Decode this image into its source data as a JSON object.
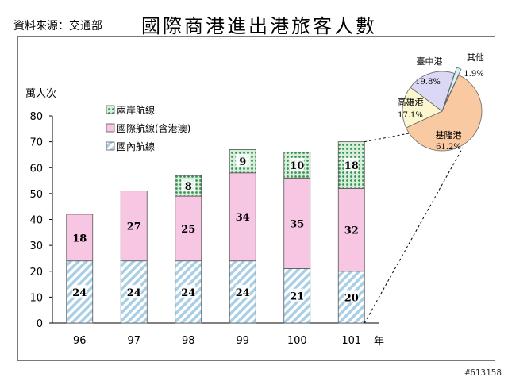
{
  "header": {
    "source": "資料來源：交通部",
    "title": "國際商港進出港旅客人數"
  },
  "watermark": "#613158",
  "chart_data": [
    {
      "type": "bar",
      "stacked": true,
      "ylabel": "萬人次",
      "xlabel": "年",
      "ylim": [
        0,
        80
      ],
      "yticks": [
        0,
        10,
        20,
        30,
        40,
        50,
        60,
        70,
        80
      ],
      "categories": [
        "96",
        "97",
        "98",
        "99",
        "100",
        "101"
      ],
      "series": [
        {
          "name": "國內航線",
          "values": [
            24,
            24,
            24,
            24,
            21,
            20
          ],
          "color": "#a8cfe6",
          "pattern": "hatch"
        },
        {
          "name": "國際航線(含港澳)",
          "values": [
            18,
            27,
            25,
            34,
            35,
            32
          ],
          "color": "#f7c6e3",
          "pattern": "solid"
        },
        {
          "name": "兩岸航線",
          "values": [
            null,
            null,
            8,
            9,
            10,
            18
          ],
          "color": "#8fcf9f",
          "pattern": "dots"
        }
      ],
      "legend_order": [
        "兩岸航線",
        "國際航線(含港澳)",
        "國內航線"
      ],
      "legend_position": "top-left"
    },
    {
      "type": "pie",
      "slices": [
        {
          "label": "基隆港",
          "value": 61.2,
          "pct": "61.2%",
          "color": "#f9c9a2"
        },
        {
          "label": "高雄港",
          "value": 17.1,
          "pct": "17.1%",
          "color": "#fdf7cf"
        },
        {
          "label": "臺中港",
          "value": 19.8,
          "pct": "19.8%",
          "color": "#dbd8f5"
        },
        {
          "label": "其他",
          "value": 1.9,
          "pct": "1.9%",
          "color": "#d4f3f6"
        }
      ]
    }
  ]
}
